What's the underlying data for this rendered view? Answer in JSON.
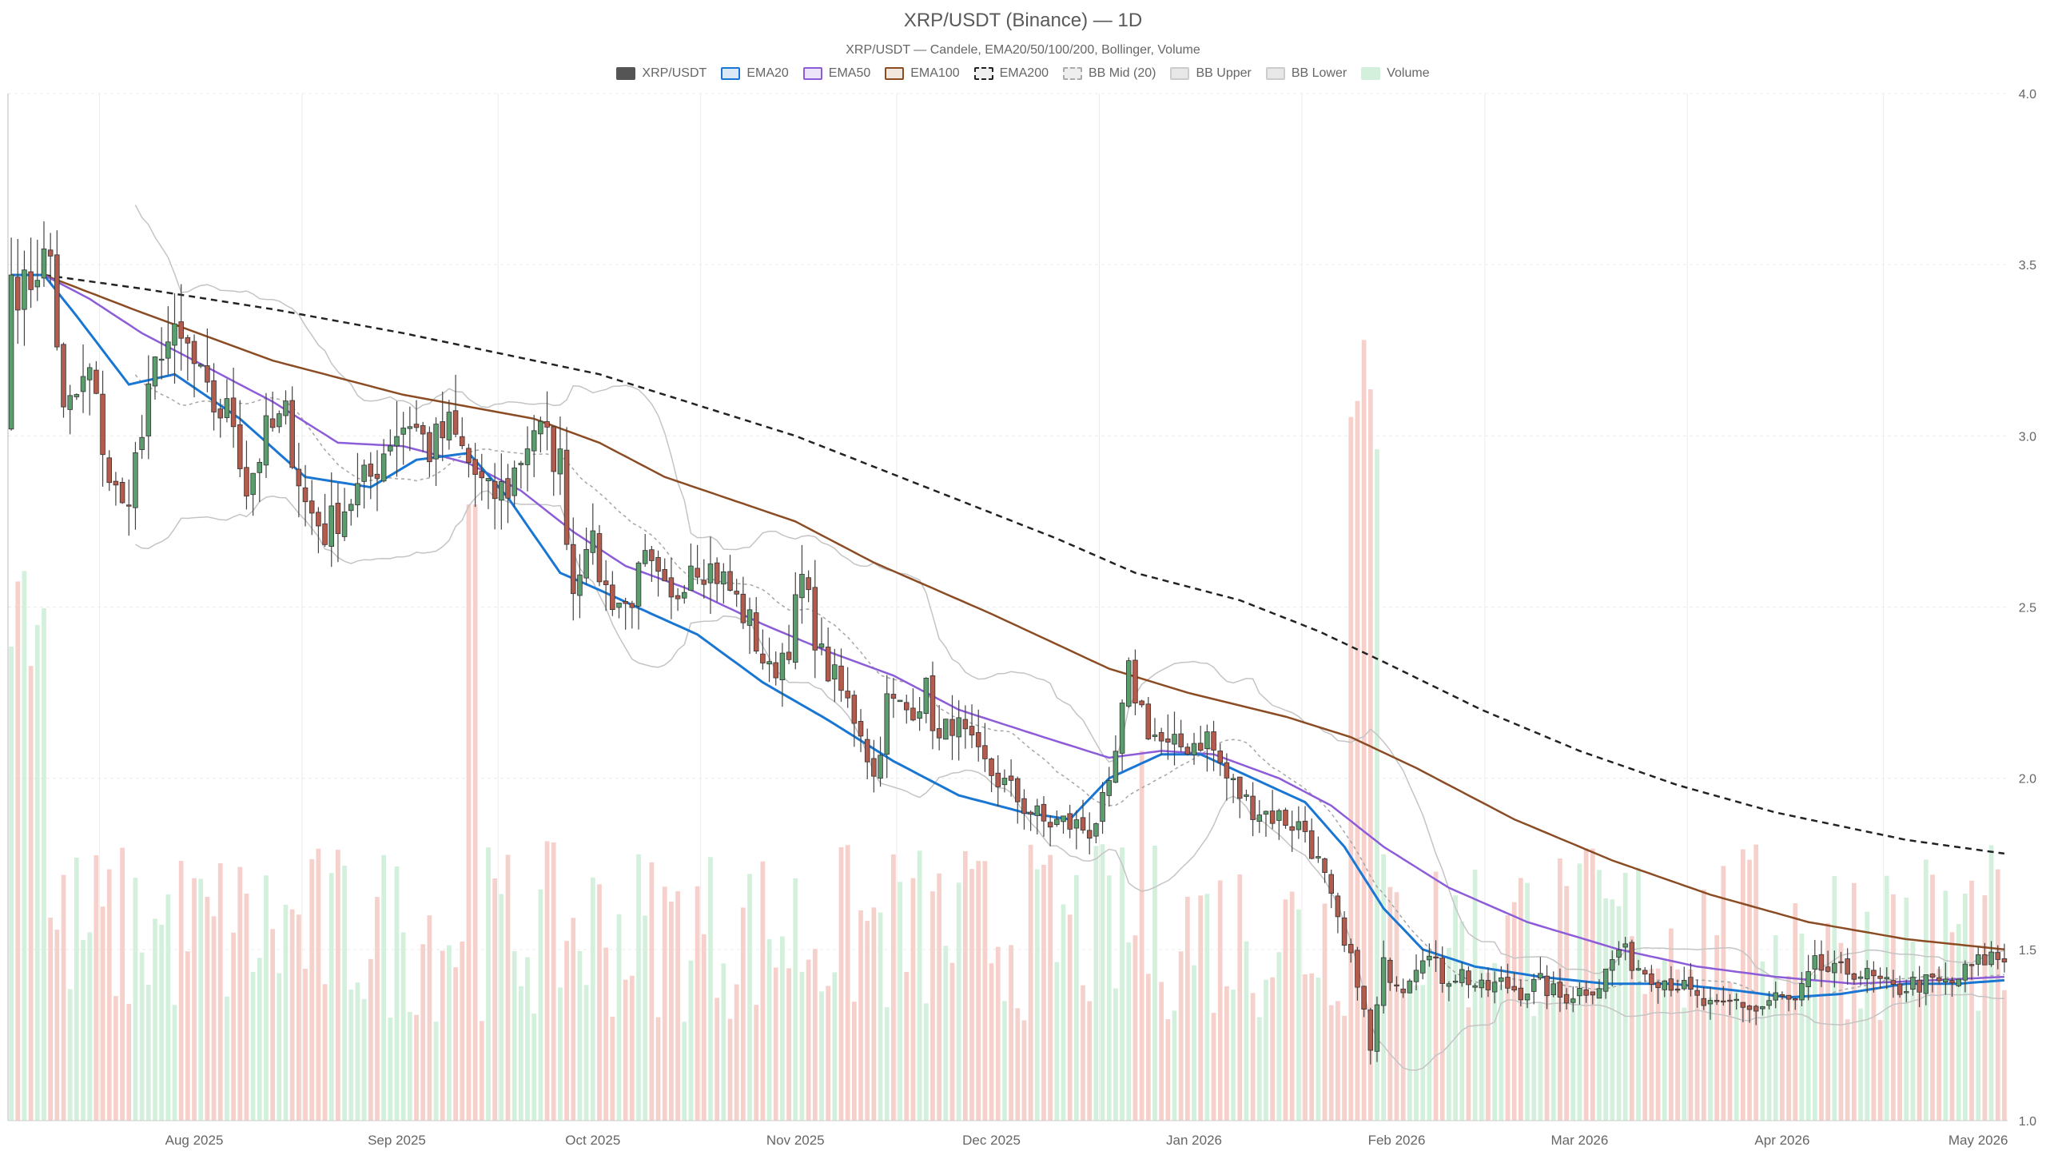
{
  "chart_data": {
    "type": "candlestick",
    "title": "XRP/USDT (Binance) — 1D",
    "subtitle": "XRP/USDT — Candele, EMA20/50/100/200, Bollinger, Volume",
    "legend": [
      {
        "name": "XRP/USDT",
        "color": "#555555",
        "fill": "#555555",
        "dash": false
      },
      {
        "name": "EMA20",
        "color": "#1976d2",
        "fill": "#dbe9f7",
        "dash": false
      },
      {
        "name": "EMA50",
        "color": "#8c5cd9",
        "fill": "#ece4f8",
        "dash": false
      },
      {
        "name": "EMA100",
        "color": "#8b4c24",
        "fill": "#f1e7df",
        "dash": false
      },
      {
        "name": "EMA200",
        "color": "#222222",
        "fill": "#eeeeee",
        "dash": true
      },
      {
        "name": "BB Mid (20)",
        "color": "#aaaaaa",
        "fill": "#eeeeee",
        "dash": true
      },
      {
        "name": "BB Upper",
        "color": "#cccccc",
        "fill": "#e8e8e8",
        "dash": false
      },
      {
        "name": "BB Lower",
        "color": "#cccccc",
        "fill": "#e8e8e8",
        "dash": false
      },
      {
        "name": "Volume",
        "color": "#d3f0dc",
        "fill": "#d3f0dc",
        "dash": false
      }
    ],
    "x_ticks": [
      "Aug 2025",
      "Sep 2025",
      "Oct 2025",
      "Nov 2025",
      "Dec 2025",
      "Jan 2026",
      "Feb 2026",
      "Mar 2026",
      "Apr 2026",
      "May 2026"
    ],
    "y_ticks": [
      "1.0",
      "1.5",
      "2.0",
      "2.5",
      "3.0",
      "3.5",
      "4.0"
    ],
    "ylim": [
      1.0,
      4.0
    ],
    "x_start": "2025-07-18",
    "x_end": "2026-05-16",
    "ema20_anchors": [
      [
        0,
        3.47
      ],
      [
        5,
        3.47
      ],
      [
        10,
        3.35
      ],
      [
        18,
        3.15
      ],
      [
        25,
        3.18
      ],
      [
        35,
        3.05
      ],
      [
        45,
        2.88
      ],
      [
        55,
        2.85
      ],
      [
        62,
        2.93
      ],
      [
        70,
        2.95
      ],
      [
        76,
        2.82
      ],
      [
        84,
        2.6
      ],
      [
        90,
        2.55
      ],
      [
        98,
        2.48
      ],
      [
        105,
        2.42
      ],
      [
        115,
        2.28
      ],
      [
        125,
        2.17
      ],
      [
        135,
        2.05
      ],
      [
        145,
        1.95
      ],
      [
        155,
        1.9
      ],
      [
        162,
        1.88
      ],
      [
        168,
        2.0
      ],
      [
        176,
        2.07
      ],
      [
        182,
        2.07
      ],
      [
        190,
        2.0
      ],
      [
        198,
        1.93
      ],
      [
        204,
        1.8
      ],
      [
        210,
        1.62
      ],
      [
        216,
        1.5
      ],
      [
        224,
        1.45
      ],
      [
        234,
        1.42
      ],
      [
        244,
        1.4
      ],
      [
        254,
        1.4
      ],
      [
        264,
        1.38
      ],
      [
        272,
        1.36
      ],
      [
        280,
        1.37
      ],
      [
        290,
        1.4
      ],
      [
        298,
        1.4
      ],
      [
        305,
        1.41
      ]
    ],
    "ema50_anchors": [
      [
        0,
        3.47
      ],
      [
        5,
        3.47
      ],
      [
        12,
        3.4
      ],
      [
        20,
        3.3
      ],
      [
        30,
        3.2
      ],
      [
        40,
        3.1
      ],
      [
        50,
        2.98
      ],
      [
        60,
        2.97
      ],
      [
        70,
        2.92
      ],
      [
        78,
        2.84
      ],
      [
        86,
        2.72
      ],
      [
        94,
        2.62
      ],
      [
        104,
        2.55
      ],
      [
        115,
        2.45
      ],
      [
        125,
        2.37
      ],
      [
        135,
        2.3
      ],
      [
        145,
        2.2
      ],
      [
        158,
        2.12
      ],
      [
        168,
        2.06
      ],
      [
        176,
        2.08
      ],
      [
        184,
        2.07
      ],
      [
        194,
        2.0
      ],
      [
        202,
        1.92
      ],
      [
        210,
        1.8
      ],
      [
        220,
        1.68
      ],
      [
        232,
        1.58
      ],
      [
        246,
        1.5
      ],
      [
        258,
        1.45
      ],
      [
        270,
        1.42
      ],
      [
        282,
        1.4
      ],
      [
        294,
        1.41
      ],
      [
        305,
        1.42
      ]
    ],
    "ema100_anchors": [
      [
        0,
        3.47
      ],
      [
        5,
        3.47
      ],
      [
        20,
        3.36
      ],
      [
        40,
        3.22
      ],
      [
        60,
        3.12
      ],
      [
        80,
        3.05
      ],
      [
        90,
        2.98
      ],
      [
        100,
        2.88
      ],
      [
        120,
        2.75
      ],
      [
        132,
        2.63
      ],
      [
        150,
        2.48
      ],
      [
        168,
        2.32
      ],
      [
        180,
        2.25
      ],
      [
        195,
        2.18
      ],
      [
        205,
        2.12
      ],
      [
        215,
        2.03
      ],
      [
        230,
        1.88
      ],
      [
        245,
        1.76
      ],
      [
        260,
        1.66
      ],
      [
        275,
        1.58
      ],
      [
        290,
        1.53
      ],
      [
        305,
        1.5
      ]
    ],
    "ema200_anchors": [
      [
        0,
        3.47
      ],
      [
        5,
        3.47
      ],
      [
        20,
        3.43
      ],
      [
        40,
        3.37
      ],
      [
        60,
        3.3
      ],
      [
        80,
        3.22
      ],
      [
        90,
        3.18
      ],
      [
        100,
        3.12
      ],
      [
        120,
        3.0
      ],
      [
        140,
        2.85
      ],
      [
        160,
        2.7
      ],
      [
        172,
        2.6
      ],
      [
        188,
        2.52
      ],
      [
        200,
        2.43
      ],
      [
        210,
        2.34
      ],
      [
        225,
        2.2
      ],
      [
        240,
        2.08
      ],
      [
        255,
        1.98
      ],
      [
        270,
        1.9
      ],
      [
        290,
        1.82
      ],
      [
        305,
        1.78
      ]
    ],
    "close_anchors": [
      [
        0,
        3.47
      ],
      [
        2,
        3.42
      ],
      [
        4,
        3.5
      ],
      [
        6,
        3.52
      ],
      [
        8,
        3.05
      ],
      [
        12,
        3.18
      ],
      [
        15,
        2.88
      ],
      [
        17,
        2.78
      ],
      [
        20,
        3.0
      ],
      [
        23,
        3.28
      ],
      [
        27,
        3.25
      ],
      [
        30,
        3.1
      ],
      [
        34,
        3.05
      ],
      [
        36,
        2.85
      ],
      [
        39,
        3.0
      ],
      [
        42,
        3.05
      ],
      [
        45,
        2.8
      ],
      [
        48,
        2.72
      ],
      [
        52,
        2.82
      ],
      [
        55,
        2.88
      ],
      [
        58,
        3.0
      ],
      [
        61,
        3.05
      ],
      [
        64,
        2.96
      ],
      [
        67,
        3.02
      ],
      [
        70,
        2.92
      ],
      [
        73,
        2.82
      ],
      [
        76,
        2.85
      ],
      [
        80,
        3.03
      ],
      [
        84,
        2.92
      ],
      [
        86,
        2.55
      ],
      [
        88,
        2.72
      ],
      [
        91,
        2.55
      ],
      [
        94,
        2.5
      ],
      [
        97,
        2.62
      ],
      [
        101,
        2.5
      ],
      [
        104,
        2.65
      ],
      [
        108,
        2.6
      ],
      [
        110,
        2.55
      ],
      [
        113,
        2.45
      ],
      [
        116,
        2.3
      ],
      [
        119,
        2.4
      ],
      [
        121,
        2.58
      ],
      [
        124,
        2.35
      ],
      [
        127,
        2.25
      ],
      [
        130,
        2.15
      ],
      [
        132,
        2.0
      ],
      [
        134,
        2.22
      ],
      [
        137,
        2.2
      ],
      [
        140,
        2.25
      ],
      [
        142,
        2.1
      ],
      [
        144,
        2.17
      ],
      [
        148,
        2.05
      ],
      [
        152,
        1.98
      ],
      [
        155,
        1.92
      ],
      [
        158,
        1.87
      ],
      [
        161,
        1.87
      ],
      [
        165,
        1.85
      ],
      [
        168,
        1.95
      ],
      [
        171,
        2.3
      ],
      [
        174,
        2.15
      ],
      [
        177,
        2.08
      ],
      [
        180,
        2.1
      ],
      [
        183,
        2.12
      ],
      [
        186,
        2.0
      ],
      [
        189,
        1.93
      ],
      [
        192,
        1.9
      ],
      [
        195,
        1.88
      ],
      [
        198,
        1.85
      ],
      [
        201,
        1.7
      ],
      [
        204,
        1.5
      ],
      [
        206,
        1.42
      ],
      [
        208,
        1.2
      ],
      [
        210,
        1.45
      ],
      [
        213,
        1.4
      ],
      [
        216,
        1.5
      ],
      [
        219,
        1.42
      ],
      [
        222,
        1.43
      ],
      [
        225,
        1.38
      ],
      [
        228,
        1.4
      ],
      [
        231,
        1.38
      ],
      [
        234,
        1.4
      ],
      [
        237,
        1.36
      ],
      [
        240,
        1.38
      ],
      [
        243,
        1.4
      ],
      [
        246,
        1.5
      ],
      [
        249,
        1.45
      ],
      [
        252,
        1.42
      ],
      [
        255,
        1.4
      ],
      [
        258,
        1.35
      ],
      [
        261,
        1.32
      ],
      [
        264,
        1.35
      ],
      [
        267,
        1.32
      ],
      [
        270,
        1.36
      ],
      [
        273,
        1.34
      ],
      [
        276,
        1.45
      ],
      [
        279,
        1.43
      ],
      [
        282,
        1.44
      ],
      [
        285,
        1.41
      ],
      [
        288,
        1.38
      ],
      [
        291,
        1.4
      ],
      [
        294,
        1.4
      ],
      [
        297,
        1.4
      ],
      [
        300,
        1.45
      ],
      [
        303,
        1.48
      ],
      [
        305,
        1.47
      ]
    ]
  }
}
